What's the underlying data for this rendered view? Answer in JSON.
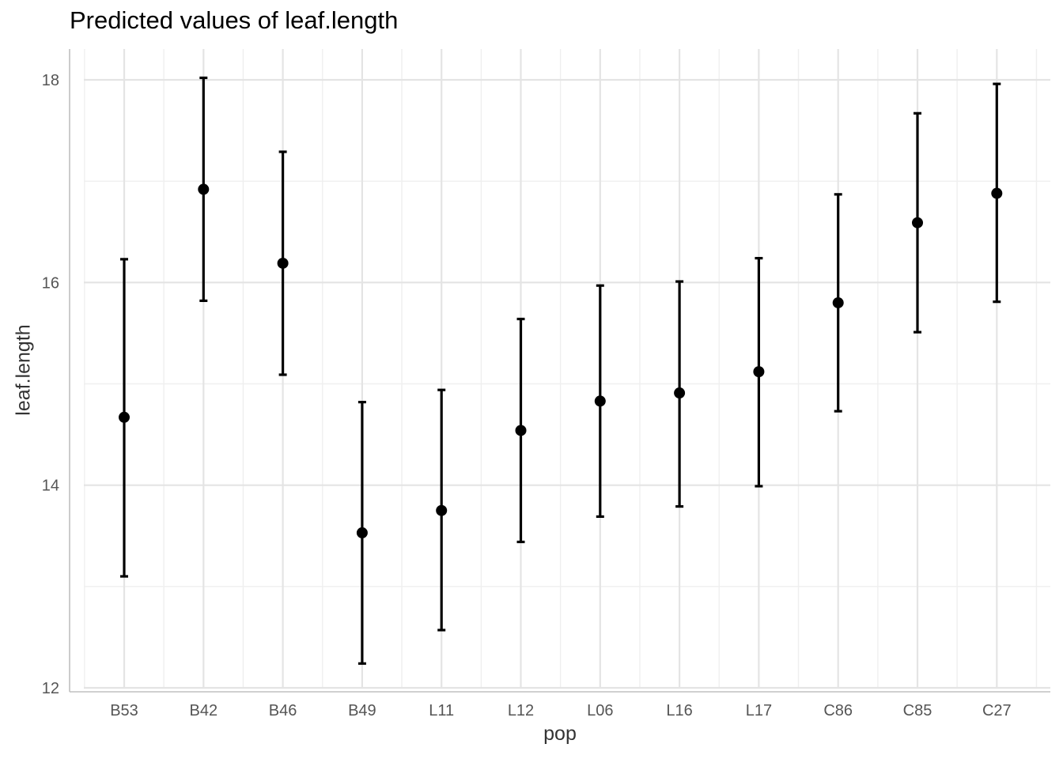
{
  "chart_data": {
    "type": "errorbar",
    "title": "Predicted values of leaf.length",
    "xlabel": "pop",
    "ylabel": "leaf.length",
    "ylim": [
      12,
      18.3
    ],
    "y_ticks": [
      12,
      14,
      16,
      18
    ],
    "grid": true,
    "categories": [
      "B53",
      "B42",
      "B46",
      "B49",
      "L11",
      "L12",
      "L06",
      "L16",
      "L17",
      "C86",
      "C85",
      "C27"
    ],
    "values": [
      14.67,
      16.92,
      16.19,
      13.53,
      13.75,
      14.54,
      14.83,
      14.91,
      15.12,
      15.8,
      16.59,
      16.88
    ],
    "lower": [
      13.1,
      15.82,
      15.09,
      12.24,
      12.57,
      13.44,
      13.69,
      13.79,
      13.99,
      14.73,
      15.51,
      15.81
    ],
    "upper": [
      16.23,
      18.02,
      17.29,
      14.82,
      14.94,
      15.64,
      15.97,
      16.01,
      16.24,
      16.87,
      17.67,
      17.96
    ],
    "colors": {
      "points": "#000000",
      "grid_major": "#e4e4e4",
      "grid_minor": "#efefef",
      "axis": "#c0c0c0",
      "tick_text": "#555555"
    }
  }
}
